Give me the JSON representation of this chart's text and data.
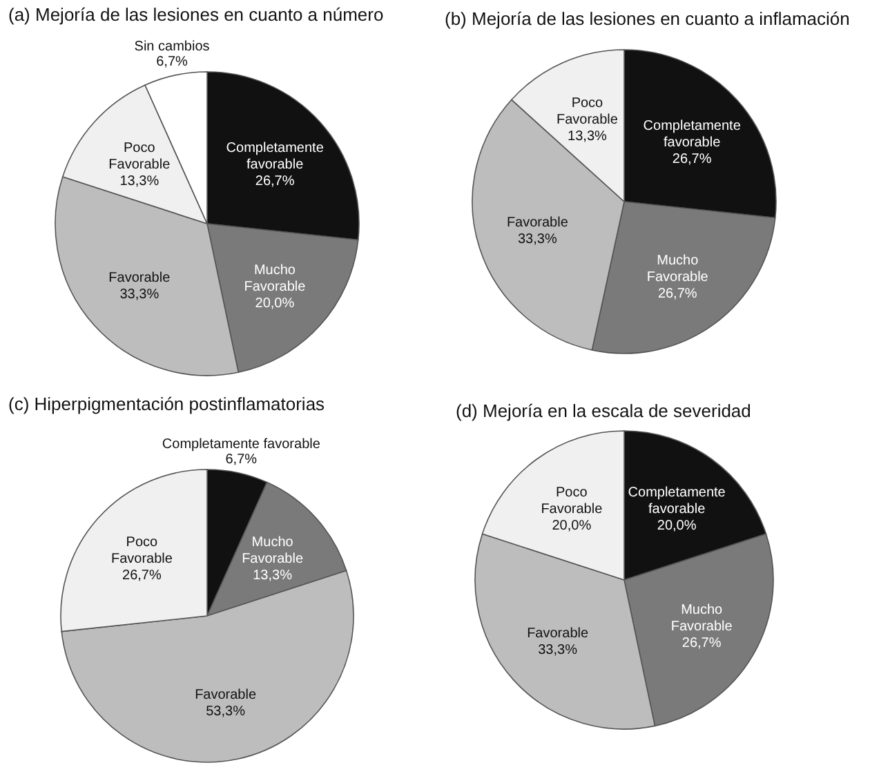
{
  "chart_data": [
    {
      "type": "pie",
      "title": "(a) Mejoría de las lesiones en cuanto a número",
      "categories": [
        "Completamente favorable",
        "Mucho Favorable",
        "Favorable",
        "Poco Favorable",
        "Sin cambios"
      ],
      "values": [
        26.7,
        20.0,
        33.3,
        13.3,
        6.7
      ],
      "colors": [
        "#111111",
        "#7a7a7a",
        "#bdbdbd",
        "#f0f0f0",
        "#ffffff"
      ],
      "value_labels": [
        "26,7%",
        "20,0%",
        "33,3%",
        "13,3%",
        "6,7%"
      ]
    },
    {
      "type": "pie",
      "title": "(b) Mejoría de las lesiones en cuanto a inflamación",
      "categories": [
        "Completamente favorable",
        "Mucho Favorable",
        "Favorable",
        "Poco Favorable"
      ],
      "values": [
        26.7,
        26.7,
        33.3,
        13.3
      ],
      "colors": [
        "#111111",
        "#7a7a7a",
        "#bdbdbd",
        "#f0f0f0"
      ],
      "value_labels": [
        "26,7%",
        "26,7%",
        "33,3%",
        "13,3%"
      ]
    },
    {
      "type": "pie",
      "title": "(c) Hiperpigmentación postinflamatorias",
      "categories": [
        "Completamente favorable",
        "Mucho Favorable",
        "Favorable",
        "Poco Favorable"
      ],
      "values": [
        6.7,
        13.3,
        53.3,
        26.7
      ],
      "colors": [
        "#111111",
        "#7a7a7a",
        "#bdbdbd",
        "#f0f0f0"
      ],
      "value_labels": [
        "6,7%",
        "13,3%",
        "53,3%",
        "26,7%"
      ]
    },
    {
      "type": "pie",
      "title": "(d) Mejoría en la escala de severidad",
      "categories": [
        "Completamente favorable",
        "Mucho Favorable",
        "Favorable",
        "Poco Favorable"
      ],
      "values": [
        20.0,
        26.7,
        33.3,
        20.0
      ],
      "colors": [
        "#111111",
        "#7a7a7a",
        "#bdbdbd",
        "#f0f0f0"
      ],
      "value_labels": [
        "20,0%",
        "26,7%",
        "33,3%",
        "20,0%"
      ]
    }
  ]
}
